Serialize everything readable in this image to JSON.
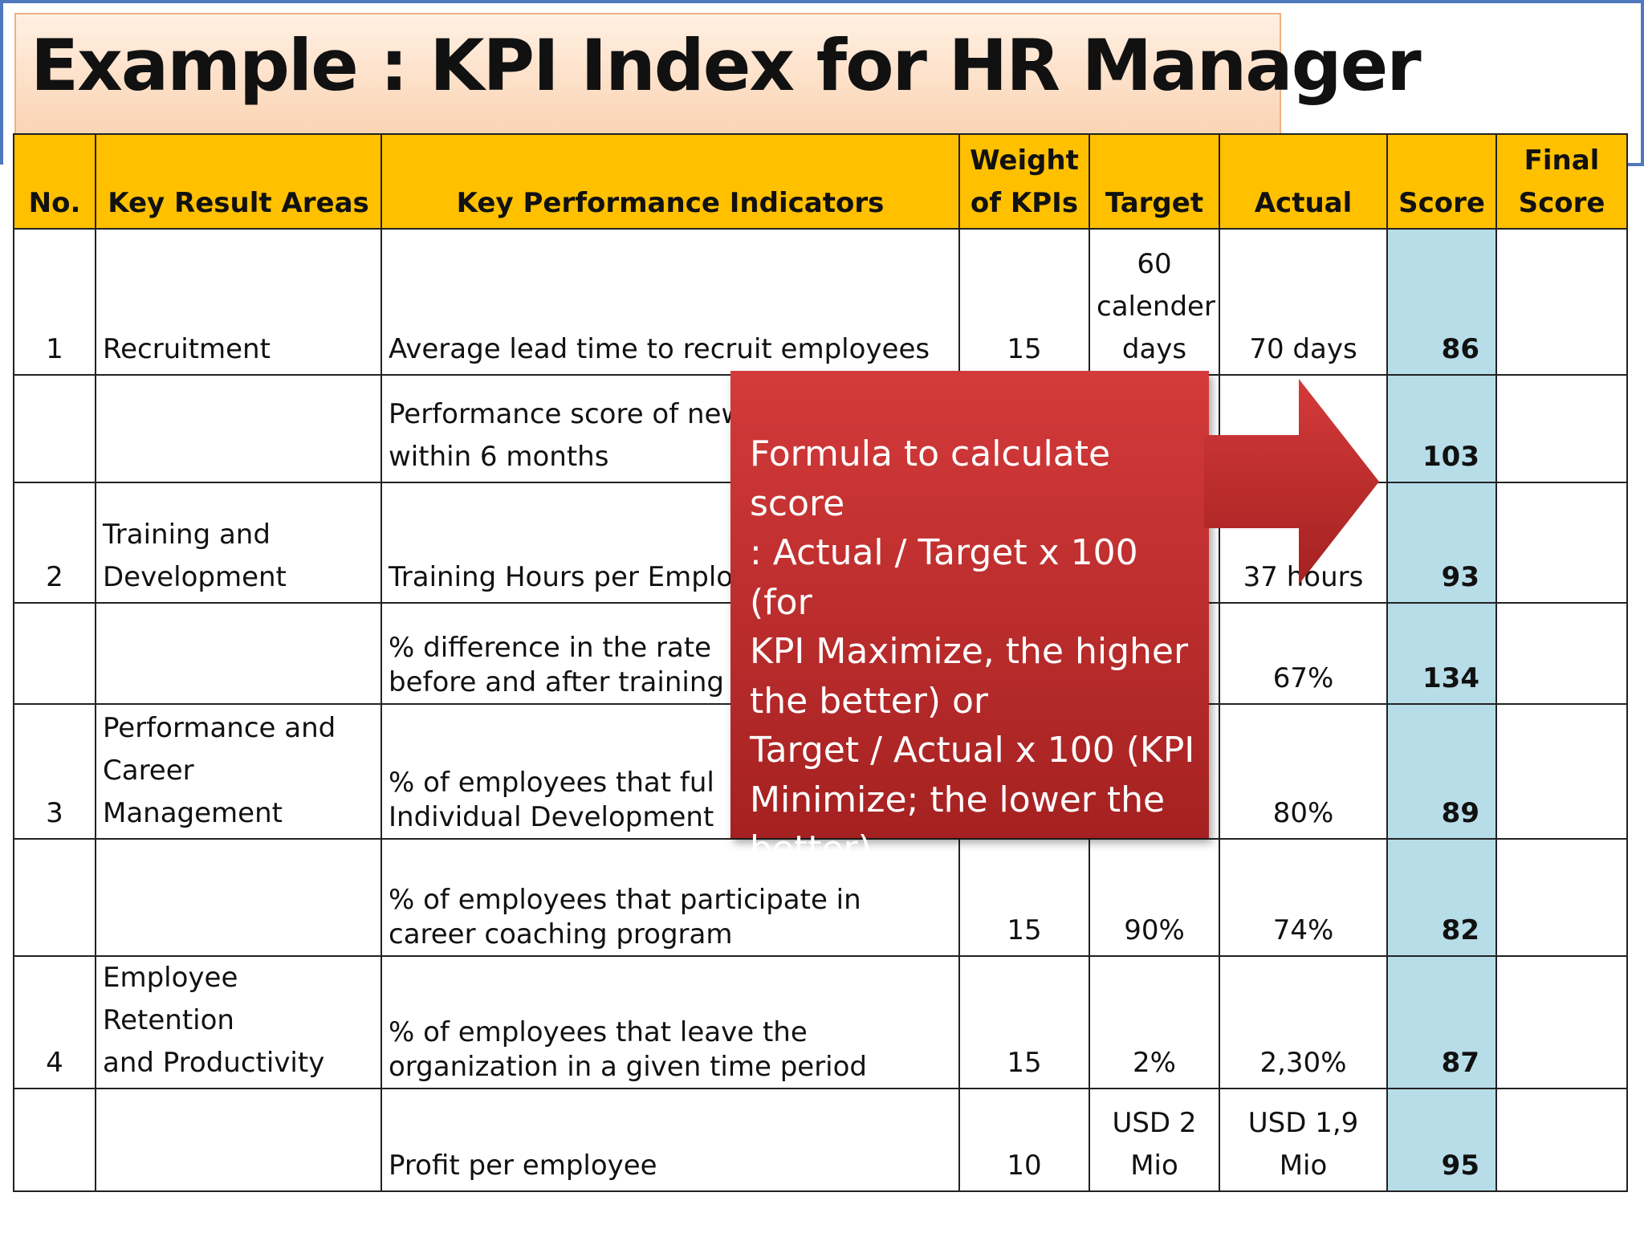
{
  "title": "Example : KPI Index for HR Manager",
  "columns": {
    "no": "No.",
    "kra": "Key Result Areas",
    "kpi": "Key Performance Indicators",
    "weight_l1": "Weight",
    "weight_l2": "of KPIs",
    "target": "Target",
    "actual": "Actual",
    "score": "Score",
    "final_l1": "Final",
    "final_l2": "Score"
  },
  "rows": [
    {
      "no": "1",
      "kra": [
        "Recruitment"
      ],
      "kpi": [
        "Average lead time to recruit employees"
      ],
      "weight": "15",
      "target": [
        "60",
        "calender",
        "days"
      ],
      "actual": [
        "70 days"
      ],
      "score": "86"
    },
    {
      "no": "",
      "kra": [],
      "kpi": [
        "Performance score of new",
        "within 6 months"
      ],
      "weight": "",
      "target": [],
      "actual": [],
      "score": "103"
    },
    {
      "no": "2",
      "kra": [
        "Training and",
        "Development"
      ],
      "kpi": [
        "Training Hours per Employ"
      ],
      "weight": "",
      "target": [],
      "actual": [
        "37 hours"
      ],
      "score": "93"
    },
    {
      "no": "",
      "kra": [],
      "kpi": [
        "% difference in the rate",
        "before and after training"
      ],
      "weight": "",
      "target": [],
      "actual": [
        "67%"
      ],
      "score": "134"
    },
    {
      "no": "3",
      "kra": [
        "Performance and",
        "Career",
        "Management"
      ],
      "kpi": [
        "% of employees that ful",
        "Individual Development"
      ],
      "weight": "",
      "target": [],
      "actual": [
        "80%"
      ],
      "score": "89"
    },
    {
      "no": "",
      "kra": [],
      "kpi": [
        "% of employees that participate in",
        "career coaching program"
      ],
      "weight": "15",
      "target": [
        "90%"
      ],
      "actual": [
        "74%"
      ],
      "score": "82"
    },
    {
      "no": "4",
      "kra": [
        "Employee Retention",
        "and Productivity"
      ],
      "kpi": [
        "% of employees that leave the",
        "organization in a given time period"
      ],
      "weight": "15",
      "target": [
        "2%"
      ],
      "actual": [
        "2,30%"
      ],
      "score": "87"
    },
    {
      "no": "",
      "kra": [],
      "kpi": [
        "Profit per employee"
      ],
      "weight": "10",
      "target": [
        "USD 2",
        "Mio"
      ],
      "actual": [
        "USD 1,9",
        "Mio"
      ],
      "score": "95"
    }
  ],
  "callout": {
    "lines": [
      "Formula to calculate score",
      ": Actual / Target x 100 (for",
      "KPI Maximize, the higher",
      "the better) or",
      "Target / Actual x 100 (KPI",
      "Minimize; the lower the",
      "better)."
    ]
  },
  "colors": {
    "header": "#ffc000",
    "score_column": "#b7dde8",
    "callout": "#c0302f",
    "title_box": "#fbd3b2",
    "frame": "#4f79bd"
  }
}
